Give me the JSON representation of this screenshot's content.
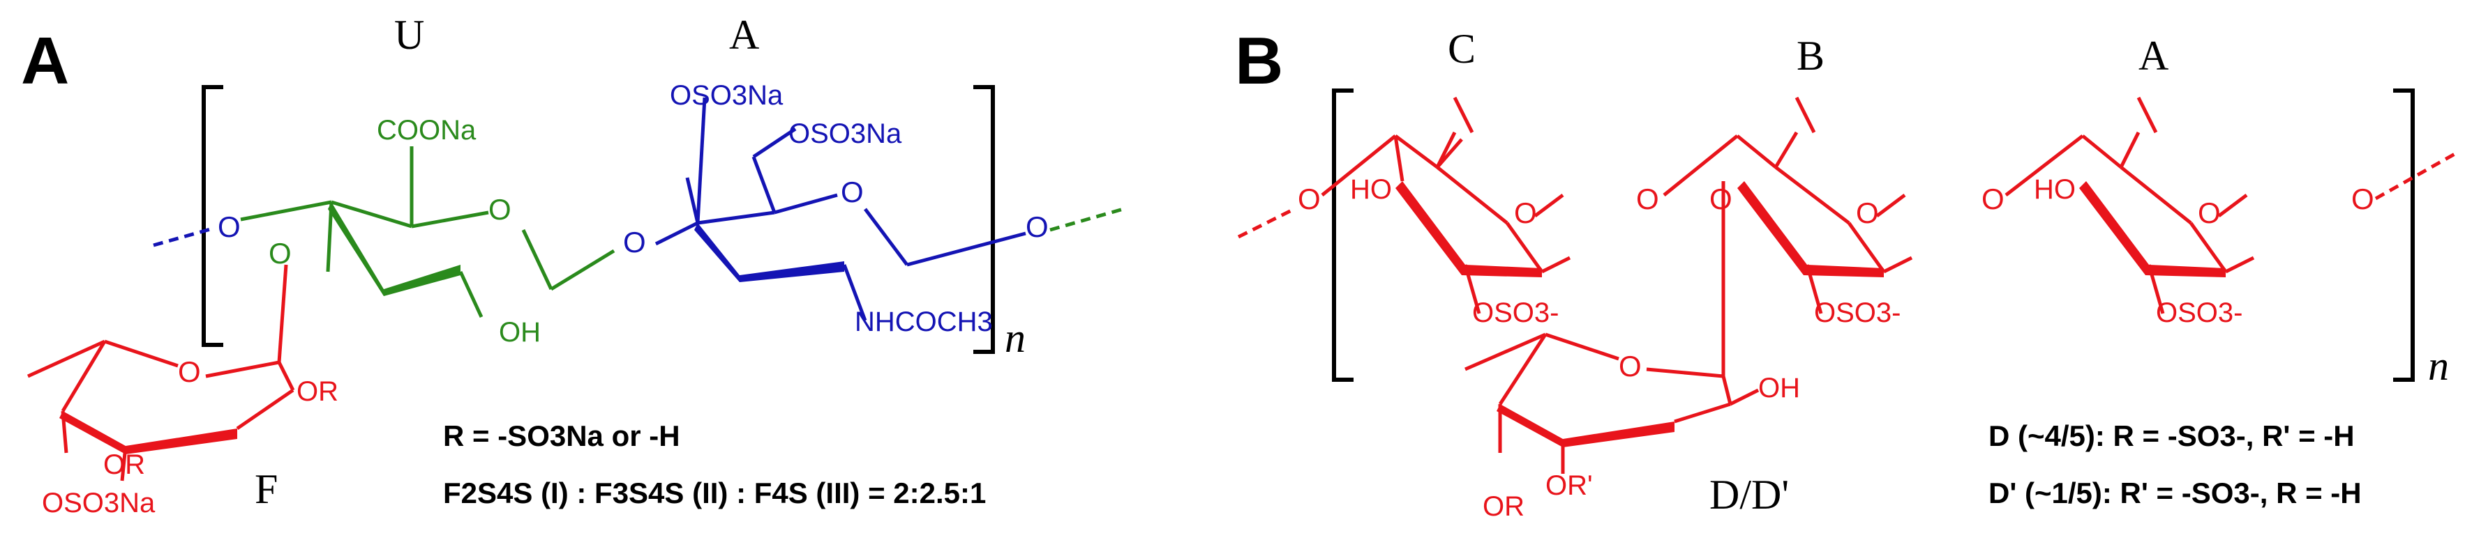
{
  "colors": {
    "fucose": "#e8141b",
    "uronic": "#2a8a1c",
    "glucosamine": "#1414b4",
    "black": "#000000"
  },
  "panel_a": {
    "letter": "A",
    "unit_u": "U",
    "unit_a": "A",
    "unit_f": "F",
    "repeat_n": "n",
    "cooh": "COONa",
    "oso3na_u": "OSO3Na",
    "oso3na_6": "OSO3Na",
    "nhcoch3": "NHCOCH3",
    "oh": "OH",
    "or1": "OR",
    "or2": "OR",
    "oso3na_f": "OSO3Na",
    "r_def": "R = -SO3Na or -H",
    "ratio": "F2S4S (I) : F3S4S (II) : F4S (III) = 2:2.5:1"
  },
  "panel_b": {
    "letter": "B",
    "unit_c": "C",
    "unit_b": "B",
    "unit_a": "A",
    "unit_dd": "D/D'",
    "repeat_n": "n",
    "ho1": "HO",
    "ho2": "HO",
    "oso3_1": "OSO3-",
    "oso3_2": "OSO3-",
    "oso3_3": "OSO3-",
    "oh_d": "OH",
    "or_prime": "OR'",
    "or_d": "OR",
    "d_def": "D (~4/5): R = -SO3-, R' = -H",
    "dprime_def": "D' (~1/5): R' = -SO3-, R = -H"
  }
}
